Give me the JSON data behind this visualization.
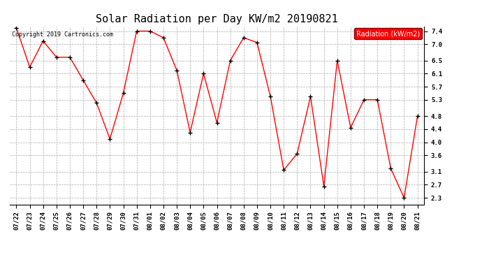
{
  "title": "Solar Radiation per Day KW/m2 20190821",
  "copyright_text": "Copyright 2019 Cartronics.com",
  "legend_label": "Radiation (kW/m2)",
  "dates": [
    "07/22",
    "07/23",
    "07/24",
    "07/25",
    "07/26",
    "07/27",
    "07/28",
    "07/29",
    "07/30",
    "07/31",
    "08/01",
    "08/02",
    "08/03",
    "08/04",
    "08/05",
    "08/06",
    "08/07",
    "08/08",
    "08/09",
    "08/10",
    "08/11",
    "08/12",
    "08/13",
    "08/14",
    "08/15",
    "08/16",
    "08/17",
    "08/18",
    "08/19",
    "08/20",
    "08/21"
  ],
  "values": [
    7.5,
    6.3,
    7.1,
    6.6,
    6.6,
    5.9,
    5.2,
    4.1,
    5.5,
    7.4,
    7.4,
    7.2,
    6.2,
    4.3,
    6.1,
    4.6,
    6.5,
    7.2,
    7.05,
    5.4,
    3.15,
    3.65,
    5.4,
    2.65,
    6.5,
    4.45,
    5.3,
    5.3,
    3.2,
    2.3,
    4.8
  ],
  "line_color": "red",
  "marker_color": "black",
  "background_color": "#ffffff",
  "grid_color": "#aaaaaa",
  "ylim_min": 2.1,
  "ylim_max": 7.55,
  "yticks": [
    2.3,
    2.7,
    3.1,
    3.6,
    4.0,
    4.4,
    4.8,
    5.3,
    5.7,
    6.1,
    6.5,
    7.0,
    7.4
  ],
  "title_fontsize": 11,
  "tick_fontsize": 6.5,
  "legend_fontsize": 7,
  "copyright_fontsize": 6
}
